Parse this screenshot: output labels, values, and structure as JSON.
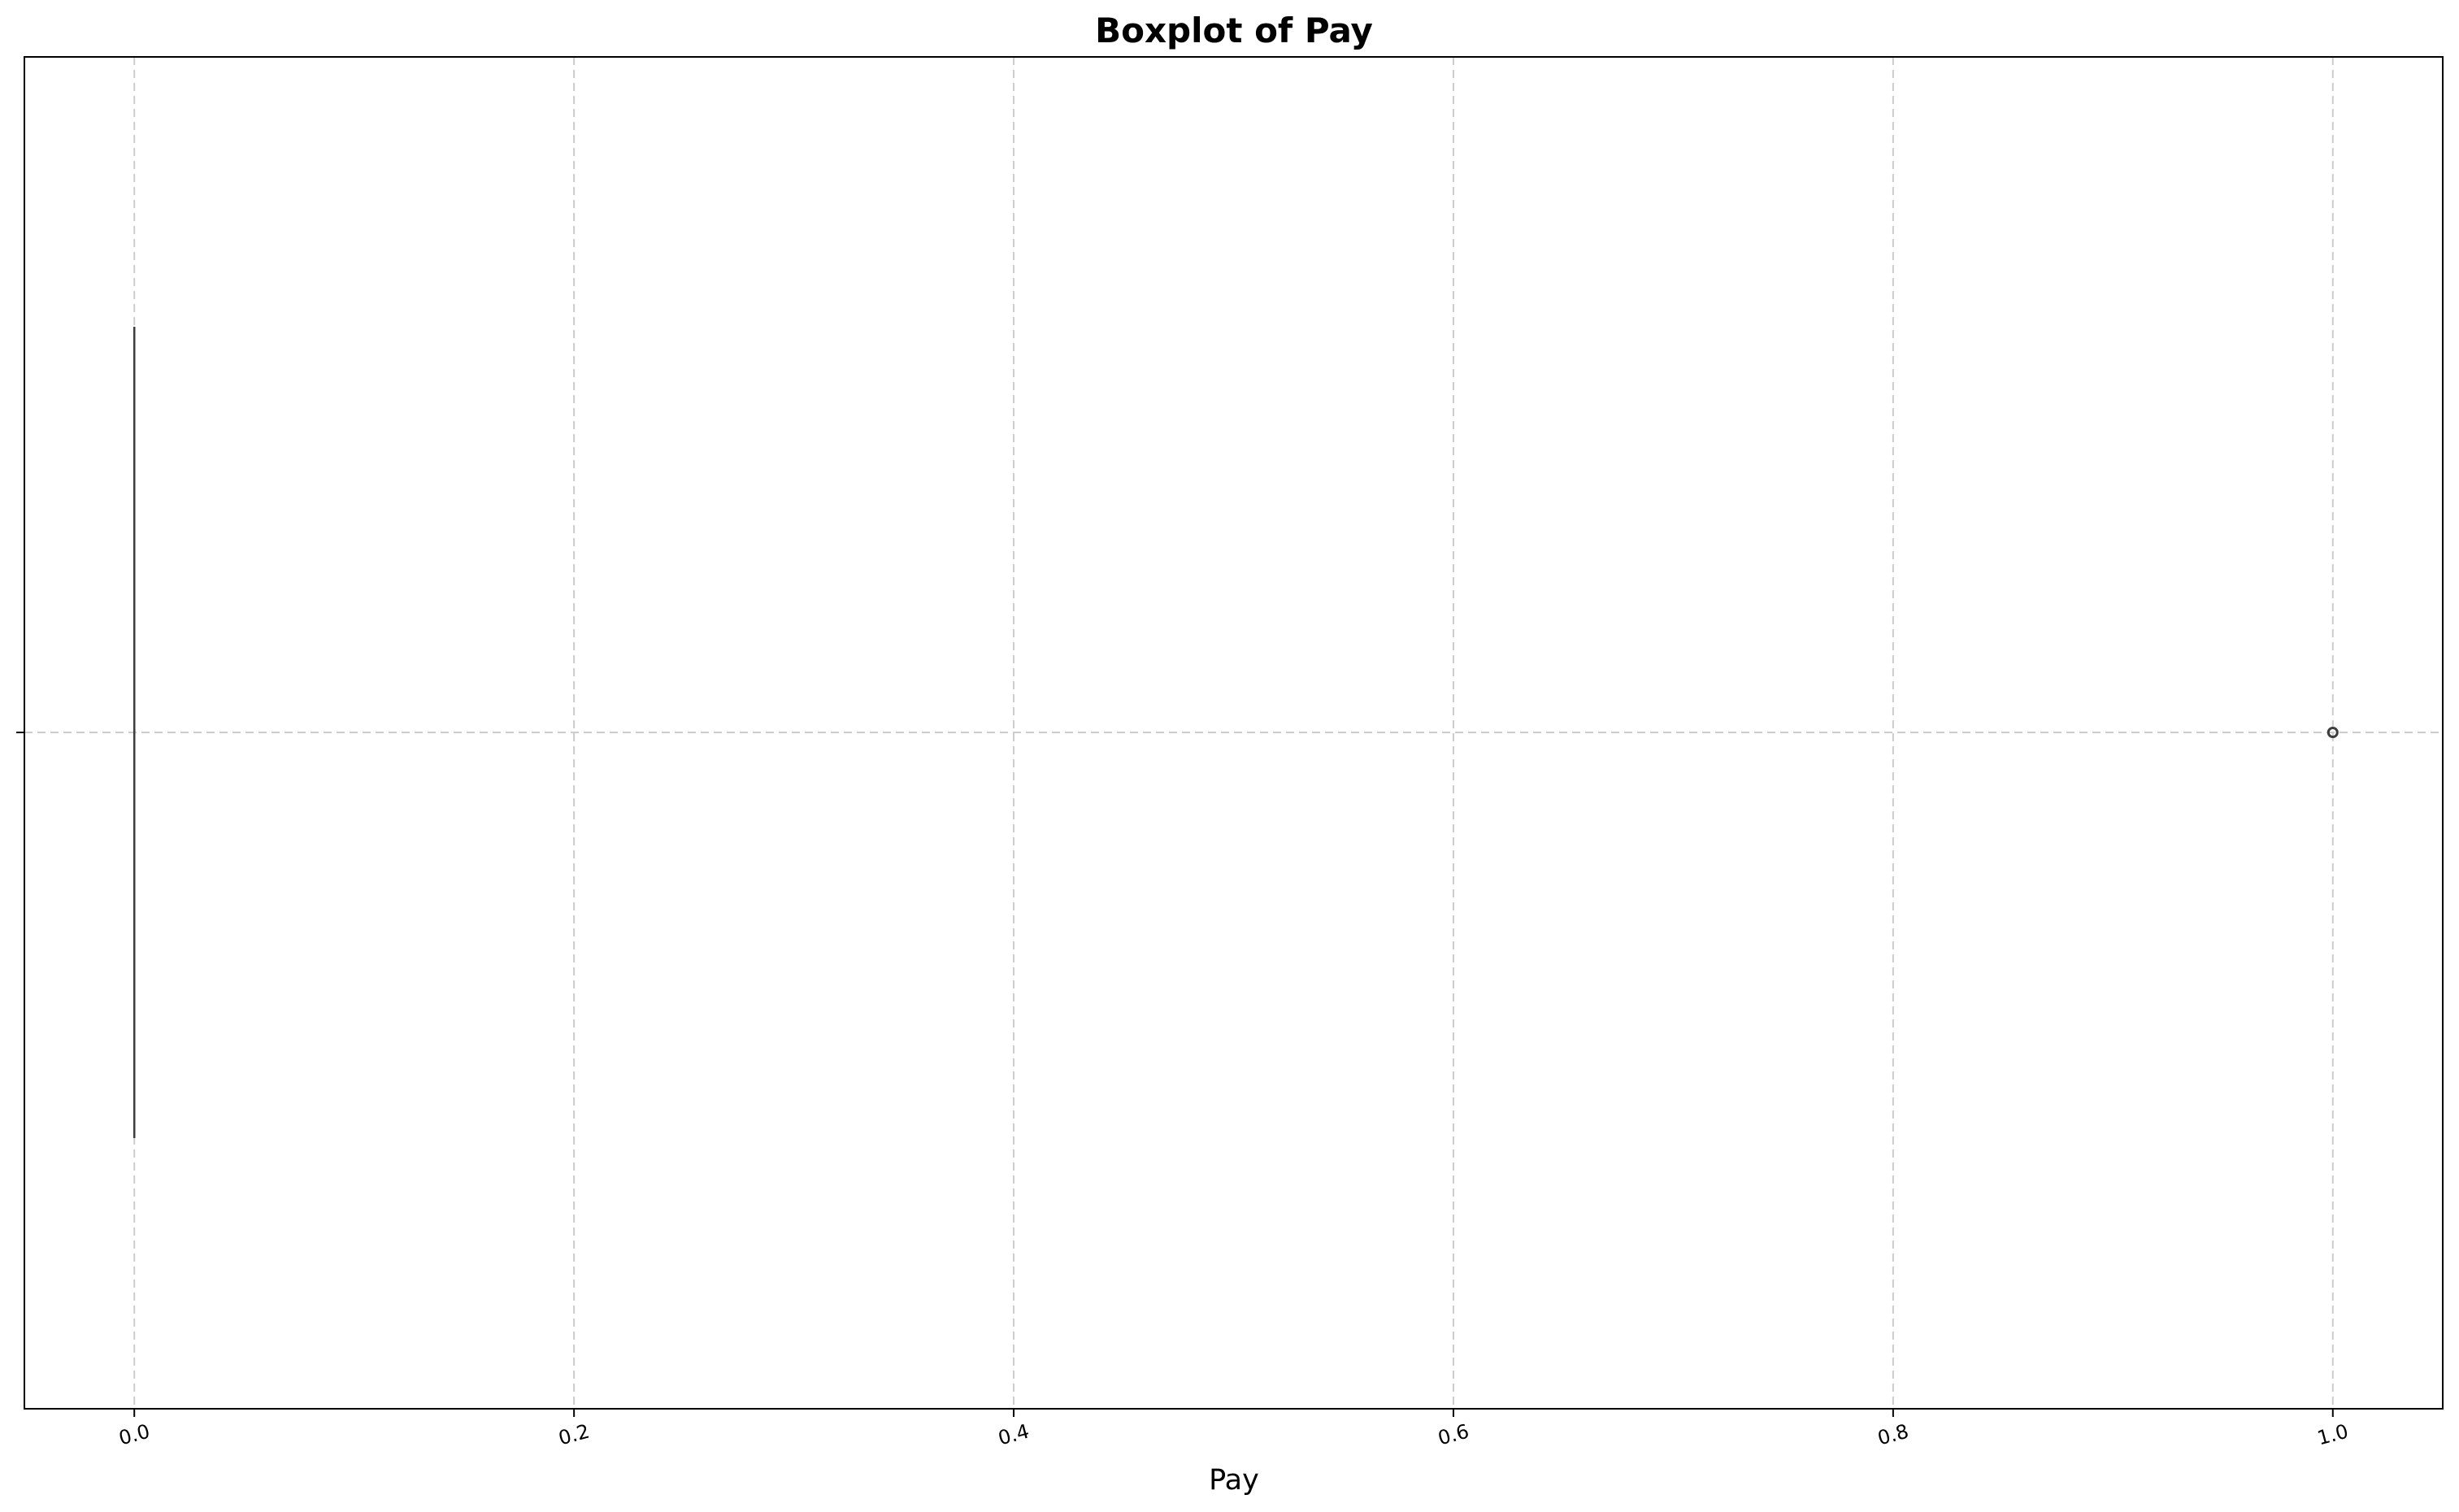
{
  "chart_data": {
    "type": "boxplot",
    "orientation": "horizontal",
    "title": "Boxplot of Pay",
    "xlabel": "Pay",
    "ylabel": "",
    "xlim": [
      -0.05,
      1.05
    ],
    "xticks": [
      0.0,
      0.2,
      0.4,
      0.6,
      0.8,
      1.0
    ],
    "xtick_labels": [
      "0.0",
      "0.2",
      "0.4",
      "0.6",
      "0.8",
      "1.0"
    ],
    "xtick_rotation_deg": 15,
    "grid": true,
    "legend": "none",
    "box": {
      "min": 0.0,
      "q1": 0.0,
      "median": 0.0,
      "q3": 0.0,
      "max": 0.0,
      "outliers": [
        1.0
      ]
    },
    "colors": {
      "line": "#3d3d3d",
      "grid": "#cccccc",
      "frame": "#000000"
    }
  }
}
